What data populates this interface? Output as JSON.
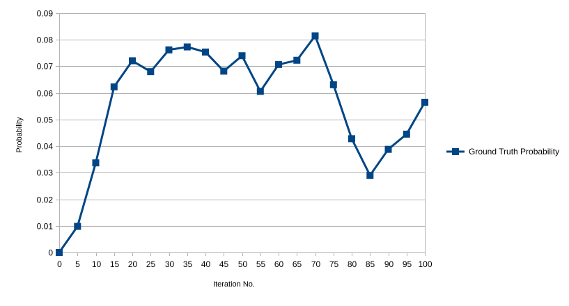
{
  "chart_data": {
    "type": "line",
    "title": "",
    "xlabel": "Iteration No.",
    "ylabel": "Probability",
    "x": [
      0,
      5,
      10,
      15,
      20,
      25,
      30,
      35,
      40,
      45,
      50,
      55,
      60,
      65,
      70,
      75,
      80,
      85,
      90,
      95,
      100
    ],
    "xlim": [
      0,
      100
    ],
    "ylim": [
      0,
      0.09
    ],
    "y_ticks": [
      "0",
      "0.01",
      "0.02",
      "0.03",
      "0.04",
      "0.05",
      "0.06",
      "0.07",
      "0.08",
      "0.09"
    ],
    "x_ticks": [
      "0",
      "5",
      "10",
      "15",
      "20",
      "25",
      "30",
      "35",
      "40",
      "45",
      "50",
      "55",
      "60",
      "65",
      "70",
      "75",
      "80",
      "85",
      "90",
      "95",
      "100"
    ],
    "grid": "horizontal",
    "legend_position": "right",
    "series": [
      {
        "name": "Ground Truth Probability",
        "color": "#004586",
        "marker": "square",
        "values": [
          0.0,
          0.0098,
          0.0337,
          0.0623,
          0.0721,
          0.068,
          0.0762,
          0.0773,
          0.0754,
          0.0682,
          0.074,
          0.0606,
          0.0707,
          0.0723,
          0.0815,
          0.0631,
          0.0428,
          0.029,
          0.0388,
          0.0445,
          0.0565
        ]
      }
    ]
  }
}
